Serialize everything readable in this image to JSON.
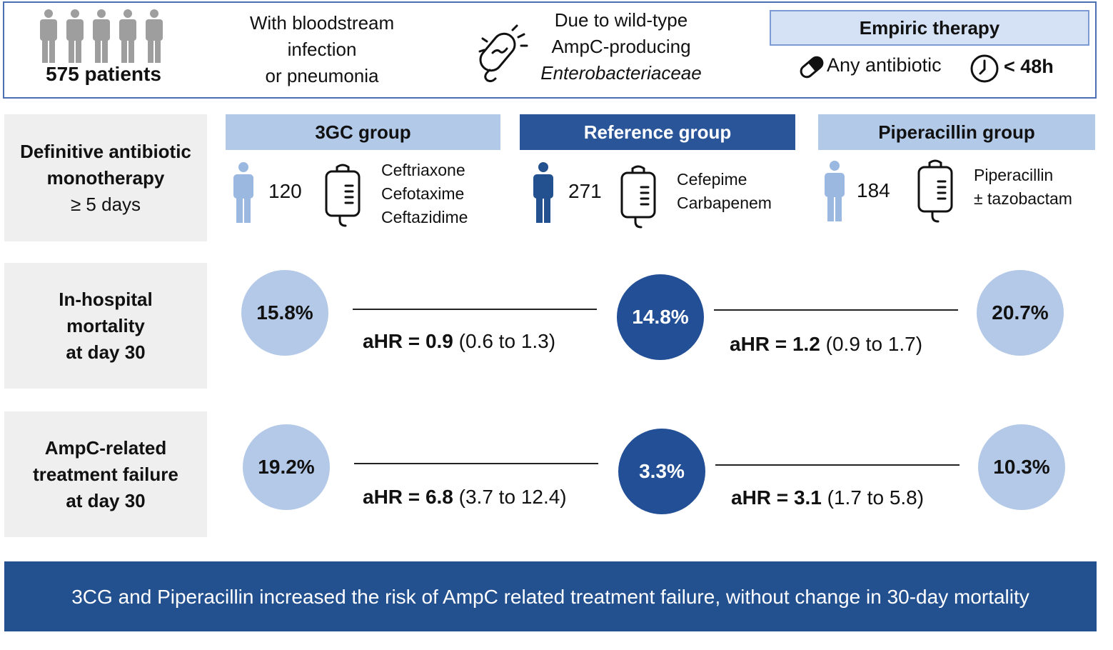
{
  "header": {
    "patients": "575 patients",
    "infection": [
      "With bloodstream",
      "infection",
      "or pneumonia"
    ],
    "pathogen": [
      "Due to wild-type",
      "AmpC-producing",
      "Enterobacteriaceae"
    ],
    "empiric_title": "Empiric therapy",
    "empiric_any": "Any antibiotic",
    "empiric_time": "< 48h"
  },
  "row_labels": {
    "therapy": [
      "Definitive antibiotic",
      "monotherapy",
      "≥ 5 days"
    ],
    "mortality": [
      "In-hospital",
      "mortality",
      "at day 30"
    ],
    "failure": [
      "AmpC-related",
      "treatment failure",
      "at day 30"
    ]
  },
  "groups": [
    {
      "name": "3GC group",
      "count": "120",
      "drugs": [
        "Ceftriaxone",
        "Cefotaxime",
        "Ceftazidime"
      ],
      "mortality": "15.8%",
      "failure": "19.2%"
    },
    {
      "name": "Reference group",
      "count": "271",
      "drugs": [
        "Cefepime",
        "Carbapenem"
      ],
      "mortality": "14.8%",
      "failure": "3.3%"
    },
    {
      "name": "Piperacillin group",
      "count": "184",
      "drugs": [
        "Piperacillin",
        "± tazobactam"
      ],
      "mortality": "20.7%",
      "failure": "10.3%"
    }
  ],
  "ahr": {
    "label": "aHR = ",
    "mortality_3gc": {
      "value": "0.9",
      "ci": "(0.6 to 1.3)"
    },
    "mortality_pip": {
      "value": "1.2",
      "ci": "(0.9 to 1.7)"
    },
    "failure_3gc": {
      "value": "6.8",
      "ci": "(3.7 to 12.4)"
    },
    "failure_pip": {
      "value": "3.1",
      "ci": "(1.7 to 5.8)"
    }
  },
  "conclusion": "3CG and Piperacillin increased the risk of AmpC related treatment failure, without change in 30-day mortality",
  "colors": {
    "dark": "#23508f",
    "light": "#b4c9e7",
    "grey": "#efefef"
  }
}
